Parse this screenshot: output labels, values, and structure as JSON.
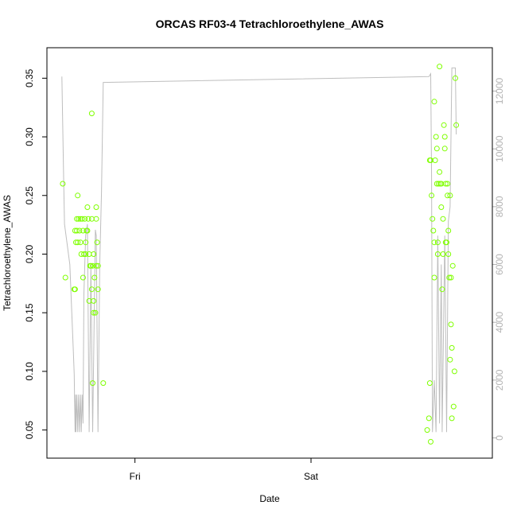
{
  "chart_data": {
    "type": "scatter",
    "title": "ORCAS RF03-4 Tetrachloroethylene_AWAS",
    "xlabel": "Date",
    "ylabel": "Tetrachloroethylene_AWAS",
    "x_unit": "days since Thu 00:00",
    "xlim": [
      0.5,
      3.03
    ],
    "x_ticks": [
      {
        "value": 1.0,
        "label": "Fri"
      },
      {
        "value": 2.0,
        "label": "Sat"
      }
    ],
    "ylim": [
      0.026,
      0.376
    ],
    "y_ticks": [
      0.05,
      0.1,
      0.15,
      0.2,
      0.25,
      0.3,
      0.35
    ],
    "y2lim": [
      -700,
      13500
    ],
    "y2_ticks": [
      0,
      2000,
      4000,
      6000,
      8000,
      10000,
      12000
    ],
    "colors": {
      "points": "#7fff00",
      "line": "#bebebe",
      "axis": "#000000",
      "right_axis": "#b3b3b3"
    },
    "series": [
      {
        "type": "scatter",
        "axis": "left",
        "points": [
          [
            0.59,
            0.26
          ],
          [
            0.605,
            0.18
          ],
          [
            0.655,
            0.17
          ],
          [
            0.66,
            0.17
          ],
          [
            0.66,
            0.22
          ],
          [
            0.665,
            0.21
          ],
          [
            0.67,
            0.23
          ],
          [
            0.67,
            0.22
          ],
          [
            0.675,
            0.21
          ],
          [
            0.675,
            0.25
          ],
          [
            0.68,
            0.23
          ],
          [
            0.685,
            0.22
          ],
          [
            0.69,
            0.21
          ],
          [
            0.69,
            0.23
          ],
          [
            0.695,
            0.2
          ],
          [
            0.7,
            0.23
          ],
          [
            0.705,
            0.22
          ],
          [
            0.705,
            0.18
          ],
          [
            0.71,
            0.2
          ],
          [
            0.715,
            0.23
          ],
          [
            0.72,
            0.21
          ],
          [
            0.72,
            0.2
          ],
          [
            0.725,
            0.22
          ],
          [
            0.73,
            0.22
          ],
          [
            0.73,
            0.24
          ],
          [
            0.735,
            0.23
          ],
          [
            0.74,
            0.2
          ],
          [
            0.74,
            0.16
          ],
          [
            0.745,
            0.19
          ],
          [
            0.75,
            0.19
          ],
          [
            0.755,
            0.32
          ],
          [
            0.755,
            0.17
          ],
          [
            0.755,
            0.23
          ],
          [
            0.76,
            0.19
          ],
          [
            0.76,
            0.09
          ],
          [
            0.765,
            0.2
          ],
          [
            0.765,
            0.15
          ],
          [
            0.765,
            0.16
          ],
          [
            0.77,
            0.18
          ],
          [
            0.775,
            0.15
          ],
          [
            0.78,
            0.19
          ],
          [
            0.78,
            0.23
          ],
          [
            0.78,
            0.24
          ],
          [
            0.785,
            0.21
          ],
          [
            0.79,
            0.17
          ],
          [
            0.79,
            0.19
          ],
          [
            0.82,
            0.09
          ],
          [
            2.66,
            0.05
          ],
          [
            2.67,
            0.06
          ],
          [
            2.675,
            0.09
          ],
          [
            2.675,
            0.28
          ],
          [
            2.68,
            0.28
          ],
          [
            2.68,
            0.04
          ],
          [
            2.685,
            0.25
          ],
          [
            2.69,
            0.23
          ],
          [
            2.695,
            0.22
          ],
          [
            2.7,
            0.21
          ],
          [
            2.7,
            0.18
          ],
          [
            2.7,
            0.33
          ],
          [
            2.705,
            0.28
          ],
          [
            2.71,
            0.3
          ],
          [
            2.715,
            0.29
          ],
          [
            2.715,
            0.26
          ],
          [
            2.72,
            0.21
          ],
          [
            2.72,
            0.2
          ],
          [
            2.725,
            0.26
          ],
          [
            2.73,
            0.36
          ],
          [
            2.73,
            0.27
          ],
          [
            2.735,
            0.26
          ],
          [
            2.74,
            0.26
          ],
          [
            2.74,
            0.24
          ],
          [
            2.745,
            0.17
          ],
          [
            2.75,
            0.23
          ],
          [
            2.75,
            0.2
          ],
          [
            2.755,
            0.31
          ],
          [
            2.76,
            0.29
          ],
          [
            2.76,
            0.3
          ],
          [
            2.765,
            0.26
          ],
          [
            2.765,
            0.21
          ],
          [
            2.77,
            0.21
          ],
          [
            2.775,
            0.25
          ],
          [
            2.775,
            0.26
          ],
          [
            2.78,
            0.22
          ],
          [
            2.78,
            0.2
          ],
          [
            2.785,
            0.18
          ],
          [
            2.79,
            0.25
          ],
          [
            2.79,
            0.11
          ],
          [
            2.795,
            0.14
          ],
          [
            2.795,
            0.18
          ],
          [
            2.8,
            0.12
          ],
          [
            2.8,
            0.06
          ],
          [
            2.805,
            0.19
          ],
          [
            2.81,
            0.07
          ],
          [
            2.815,
            0.1
          ],
          [
            2.82,
            0.35
          ],
          [
            2.825,
            0.31
          ]
        ]
      },
      {
        "type": "line",
        "axis": "right",
        "points": [
          [
            0.585,
            12500
          ],
          [
            0.595,
            9000
          ],
          [
            0.6,
            7400
          ],
          [
            0.63,
            6000
          ],
          [
            0.65,
            3000
          ],
          [
            0.655,
            2200
          ],
          [
            0.66,
            200
          ],
          [
            0.662,
            1500
          ],
          [
            0.665,
            200
          ],
          [
            0.67,
            1500
          ],
          [
            0.675,
            200
          ],
          [
            0.68,
            1500
          ],
          [
            0.685,
            200
          ],
          [
            0.69,
            1500
          ],
          [
            0.695,
            200
          ],
          [
            0.7,
            1500
          ],
          [
            0.705,
            500
          ],
          [
            0.71,
            5000
          ],
          [
            0.72,
            7000
          ],
          [
            0.73,
            7400
          ],
          [
            0.74,
            200
          ],
          [
            0.75,
            6000
          ],
          [
            0.755,
            3000
          ],
          [
            0.76,
            200
          ],
          [
            0.775,
            7200
          ],
          [
            0.78,
            7000
          ],
          [
            0.79,
            200
          ],
          [
            0.8,
            6000
          ],
          [
            0.81,
            8500
          ],
          [
            0.82,
            12300
          ],
          [
            2.67,
            12500
          ],
          [
            2.68,
            12600
          ],
          [
            2.685,
            9000
          ],
          [
            2.69,
            200
          ],
          [
            2.7,
            2000
          ],
          [
            2.71,
            200
          ],
          [
            2.72,
            7000
          ],
          [
            2.73,
            500
          ],
          [
            2.74,
            6000
          ],
          [
            2.745,
            200
          ],
          [
            2.76,
            7000
          ],
          [
            2.77,
            200
          ],
          [
            2.78,
            7500
          ],
          [
            2.79,
            8000
          ],
          [
            2.8,
            12800
          ],
          [
            2.82,
            12800
          ],
          [
            2.825,
            10500
          ]
        ]
      }
    ]
  }
}
